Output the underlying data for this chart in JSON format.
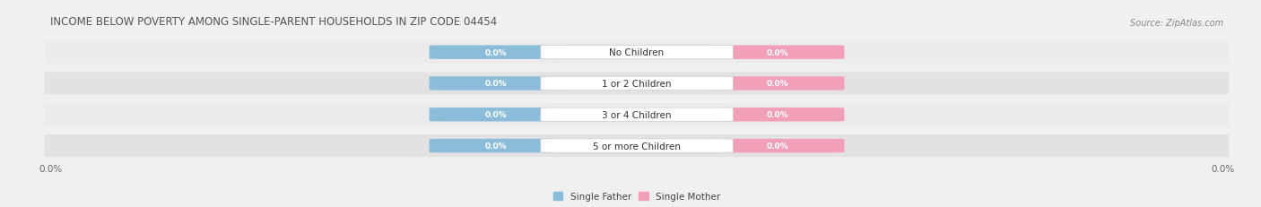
{
  "title": "INCOME BELOW POVERTY AMONG SINGLE-PARENT HOUSEHOLDS IN ZIP CODE 04454",
  "source": "Source: ZipAtlas.com",
  "categories": [
    "No Children",
    "1 or 2 Children",
    "3 or 4 Children",
    "5 or more Children"
  ],
  "father_values": [
    0.0,
    0.0,
    0.0,
    0.0
  ],
  "mother_values": [
    0.0,
    0.0,
    0.0,
    0.0
  ],
  "father_color": "#8bbcda",
  "mother_color": "#f2a0b8",
  "title_fontsize": 8.5,
  "source_fontsize": 7,
  "tick_label_fontsize": 7.5,
  "bar_label_fontsize": 6.5,
  "cat_label_fontsize": 7.5,
  "legend_fontsize": 7.5,
  "background_color": "#f0f0f0",
  "row_bg_even": "#ebebeb",
  "row_bg_odd": "#e2e2e2",
  "title_color": "#555555"
}
